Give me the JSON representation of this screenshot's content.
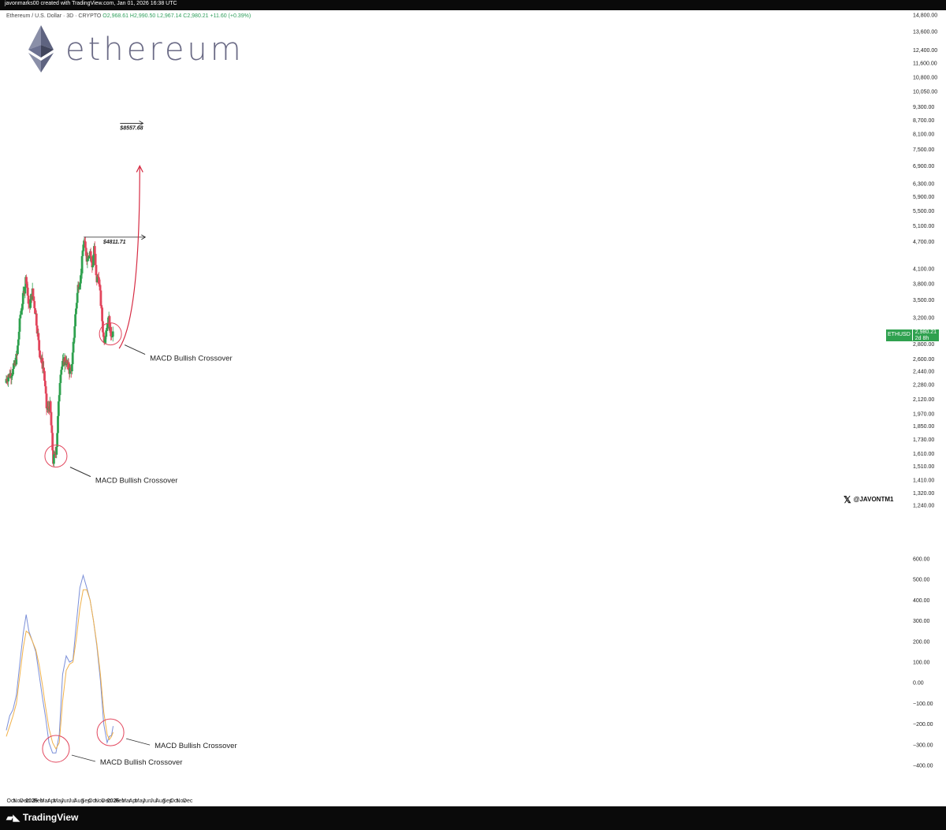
{
  "header": {
    "credit": "javonmarks00 created with TradingView.com, Jan 01, 2026 16:38 UTC",
    "symbol_line": "Ethereum / U.S. Dollar · 3D · CRYPTO",
    "ohlc": "O2,968.61  H2,990.50  L2,967.14  C2,980.21  +11.60 (+0.39%)"
  },
  "logo": {
    "word": "ethereum",
    "icon": "ethereum-diamond-icon"
  },
  "watermark": {
    "icon": "x-logo-icon",
    "handle": "@JAVONTM1"
  },
  "footer": {
    "brand": "TradingView",
    "icon": "tradingview-logo-icon"
  },
  "price_tag": {
    "symbol": "ETHUSD",
    "value": "2,980.21",
    "sub": "2d 8h"
  },
  "colors": {
    "up": "#2fa14f",
    "down": "#e2455c",
    "macd": "#7b8fd8",
    "signal": "#f0b14a",
    "arrow": "#d62b43",
    "circle": "#e2455c"
  },
  "chart_data": [
    {
      "type": "candlestick",
      "title": "Ethereum / U.S. Dollar · 3D",
      "y_axis": {
        "scale": "log",
        "ticks": [
          "14,800.00",
          "13,600.00",
          "12,400.00",
          "11,600.00",
          "10,800.00",
          "10,050.00",
          "9,300.00",
          "8,700.00",
          "8,100.00",
          "7,500.00",
          "6,900.00",
          "6,300.00",
          "5,900.00",
          "5,500.00",
          "5,100.00",
          "4,700.00",
          "4,100.00",
          "3,800.00",
          "3,500.00",
          "3,200.00",
          "2,800.00",
          "2,600.00",
          "2,440.00",
          "2,280.00",
          "2,120.00",
          "1,970.00",
          "1,850.00",
          "1,730.00",
          "1,610.00",
          "1,510.00",
          "1,410.00",
          "1,320.00",
          "1,240.00"
        ]
      },
      "close_anchors": [
        {
          "x": "2024-09-10",
          "close": 2350
        },
        {
          "x": "2024-10-10",
          "close": 2450
        },
        {
          "x": "2024-10-28",
          "close": 2650
        },
        {
          "x": "2024-11-12",
          "close": 3250
        },
        {
          "x": "2024-11-28",
          "close": 3650
        },
        {
          "x": "2024-12-08",
          "close": 3950
        },
        {
          "x": "2024-12-20",
          "close": 3350
        },
        {
          "x": "2025-01-05",
          "close": 3650
        },
        {
          "x": "2025-01-20",
          "close": 3250
        },
        {
          "x": "2025-02-05",
          "close": 2700
        },
        {
          "x": "2025-02-25",
          "close": 2450
        },
        {
          "x": "2025-03-10",
          "close": 2000
        },
        {
          "x": "2025-03-25",
          "close": 2050
        },
        {
          "x": "2025-04-08",
          "close": 1550
        },
        {
          "x": "2025-04-22",
          "close": 1650
        },
        {
          "x": "2025-05-10",
          "close": 2450
        },
        {
          "x": "2025-05-30",
          "close": 2600
        },
        {
          "x": "2025-06-20",
          "close": 2450
        },
        {
          "x": "2025-07-01",
          "close": 2500
        },
        {
          "x": "2025-07-15",
          "close": 3200
        },
        {
          "x": "2025-07-28",
          "close": 3750
        },
        {
          "x": "2025-08-10",
          "close": 3950
        },
        {
          "x": "2025-08-22",
          "close": 4750
        },
        {
          "x": "2025-09-05",
          "close": 4350
        },
        {
          "x": "2025-09-20",
          "close": 4500
        },
        {
          "x": "2025-09-30",
          "close": 4100
        },
        {
          "x": "2025-10-08",
          "close": 4600
        },
        {
          "x": "2025-10-18",
          "close": 3850
        },
        {
          "x": "2025-10-28",
          "close": 3950
        },
        {
          "x": "2025-11-08",
          "close": 3400
        },
        {
          "x": "2025-11-20",
          "close": 2850
        },
        {
          "x": "2025-12-05",
          "close": 3100
        },
        {
          "x": "2025-12-12",
          "close": 3200
        },
        {
          "x": "2025-12-20",
          "close": 2950
        },
        {
          "x": "2026-01-01",
          "close": 2980.21
        }
      ],
      "last_candle": {
        "open": 2968.61,
        "high": 2990.5,
        "low": 2967.14,
        "close": 2980.21
      },
      "annotations": [
        {
          "text": "$4811.71",
          "y": 4811.71,
          "x_from": "2025-08-22",
          "x_to": "2026-05-25"
        },
        {
          "text": "$8557.68",
          "y": 8557.68,
          "x_from": "2026-02-01",
          "x_to": "2026-05-15"
        },
        {
          "text": "MACD Bullish Crossover",
          "x": "2025-04-20",
          "y": 1590
        },
        {
          "text": "MACD Bullish Crossover",
          "x": "2025-12-20",
          "y": 2950
        }
      ],
      "projection": {
        "from": {
          "x": "2026-01-28",
          "y": 2740
        },
        "to": {
          "x": "2026-04-30",
          "y": 6900
        }
      }
    },
    {
      "type": "line",
      "title": "MACD",
      "ylim": [
        -450,
        650
      ],
      "y_ticks": [
        600,
        500,
        400,
        300,
        200,
        100,
        0,
        -100,
        -200,
        -300,
        -400
      ],
      "y_tick_labels": [
        "600.00",
        "500.00",
        "400.00",
        "300.00",
        "200.00",
        "100.00",
        "0.00",
        "−100.00",
        "−200.00",
        "−300.00",
        "−400.00"
      ],
      "series": [
        {
          "role": "macd",
          "points": [
            {
              "x": "2024-09-10",
              "y": -230
            },
            {
              "x": "2024-09-25",
              "y": -160
            },
            {
              "x": "2024-10-10",
              "y": -130
            },
            {
              "x": "2024-10-25",
              "y": -60
            },
            {
              "x": "2024-11-10",
              "y": 100
            },
            {
              "x": "2024-11-25",
              "y": 240
            },
            {
              "x": "2024-12-08",
              "y": 330
            },
            {
              "x": "2024-12-20",
              "y": 250
            },
            {
              "x": "2025-01-05",
              "y": 200
            },
            {
              "x": "2025-01-20",
              "y": 150
            },
            {
              "x": "2025-02-05",
              "y": 30
            },
            {
              "x": "2025-02-20",
              "y": -80
            },
            {
              "x": "2025-03-05",
              "y": -170
            },
            {
              "x": "2025-03-20",
              "y": -290
            },
            {
              "x": "2025-04-05",
              "y": -340
            },
            {
              "x": "2025-04-20",
              "y": -340
            },
            {
              "x": "2025-05-05",
              "y": -250
            },
            {
              "x": "2025-05-20",
              "y": 40
            },
            {
              "x": "2025-06-05",
              "y": 130
            },
            {
              "x": "2025-06-20",
              "y": 100
            },
            {
              "x": "2025-07-05",
              "y": 110
            },
            {
              "x": "2025-07-20",
              "y": 280
            },
            {
              "x": "2025-08-05",
              "y": 460
            },
            {
              "x": "2025-08-20",
              "y": 520
            },
            {
              "x": "2025-09-05",
              "y": 460
            },
            {
              "x": "2025-09-20",
              "y": 400
            },
            {
              "x": "2025-10-05",
              "y": 300
            },
            {
              "x": "2025-10-20",
              "y": 180
            },
            {
              "x": "2025-11-05",
              "y": 10
            },
            {
              "x": "2025-11-20",
              "y": -200
            },
            {
              "x": "2025-12-05",
              "y": -290
            },
            {
              "x": "2025-12-15",
              "y": -260
            },
            {
              "x": "2025-12-25",
              "y": -255
            },
            {
              "x": "2026-01-01",
              "y": -210
            }
          ]
        },
        {
          "role": "signal",
          "points": [
            {
              "x": "2024-09-10",
              "y": -260
            },
            {
              "x": "2024-09-25",
              "y": -210
            },
            {
              "x": "2024-10-10",
              "y": -160
            },
            {
              "x": "2024-10-25",
              "y": -100
            },
            {
              "x": "2024-11-10",
              "y": 40
            },
            {
              "x": "2024-11-25",
              "y": 170
            },
            {
              "x": "2024-12-08",
              "y": 250
            },
            {
              "x": "2024-12-20",
              "y": 240
            },
            {
              "x": "2025-01-05",
              "y": 200
            },
            {
              "x": "2025-01-20",
              "y": 160
            },
            {
              "x": "2025-02-05",
              "y": 80
            },
            {
              "x": "2025-02-20",
              "y": -20
            },
            {
              "x": "2025-03-05",
              "y": -120
            },
            {
              "x": "2025-03-20",
              "y": -220
            },
            {
              "x": "2025-04-05",
              "y": -290
            },
            {
              "x": "2025-04-20",
              "y": -320
            },
            {
              "x": "2025-05-05",
              "y": -290
            },
            {
              "x": "2025-05-20",
              "y": -90
            },
            {
              "x": "2025-06-05",
              "y": 60
            },
            {
              "x": "2025-06-20",
              "y": 90
            },
            {
              "x": "2025-07-05",
              "y": 100
            },
            {
              "x": "2025-07-20",
              "y": 210
            },
            {
              "x": "2025-08-05",
              "y": 360
            },
            {
              "x": "2025-08-20",
              "y": 450
            },
            {
              "x": "2025-09-05",
              "y": 450
            },
            {
              "x": "2025-09-20",
              "y": 400
            },
            {
              "x": "2025-10-05",
              "y": 300
            },
            {
              "x": "2025-10-20",
              "y": 190
            },
            {
              "x": "2025-11-05",
              "y": 40
            },
            {
              "x": "2025-11-20",
              "y": -140
            },
            {
              "x": "2025-12-05",
              "y": -250
            },
            {
              "x": "2025-12-15",
              "y": -275
            },
            {
              "x": "2025-12-25",
              "y": -260
            },
            {
              "x": "2026-01-01",
              "y": -240
            }
          ]
        }
      ],
      "annotations": [
        {
          "text": "MACD Bullish Crossover",
          "x": "2025-04-20",
          "y": -320
        },
        {
          "text": "MACD Bullish Crossover",
          "x": "2025-12-20",
          "y": -240
        }
      ]
    }
  ],
  "x_axis": {
    "ticks": [
      {
        "label": "Oct",
        "date": "2024-10-01",
        "bold": false
      },
      {
        "label": "Nov",
        "date": "2024-11-01",
        "bold": false
      },
      {
        "label": "Dec",
        "date": "2024-12-01",
        "bold": false
      },
      {
        "label": "2025",
        "date": "2025-01-01",
        "bold": true
      },
      {
        "label": "Feb",
        "date": "2025-02-01",
        "bold": false
      },
      {
        "label": "Mar",
        "date": "2025-03-01",
        "bold": false
      },
      {
        "label": "Apr",
        "date": "2025-04-01",
        "bold": false
      },
      {
        "label": "May",
        "date": "2025-05-01",
        "bold": false
      },
      {
        "label": "Jun",
        "date": "2025-06-01",
        "bold": false
      },
      {
        "label": "Jul",
        "date": "2025-07-01",
        "bold": false
      },
      {
        "label": "Aug",
        "date": "2025-08-01",
        "bold": false
      },
      {
        "label": "Sep",
        "date": "2025-09-01",
        "bold": false
      },
      {
        "label": "Oct",
        "date": "2025-10-01",
        "bold": false
      },
      {
        "label": "Nov",
        "date": "2025-11-01",
        "bold": false
      },
      {
        "label": "Dec",
        "date": "2025-12-01",
        "bold": false
      },
      {
        "label": "2026",
        "date": "2026-01-01",
        "bold": true
      },
      {
        "label": "Feb",
        "date": "2026-02-01",
        "bold": false
      },
      {
        "label": "Mar",
        "date": "2026-03-01",
        "bold": false
      },
      {
        "label": "Apr",
        "date": "2026-04-01",
        "bold": false
      },
      {
        "label": "May",
        "date": "2026-05-01",
        "bold": false
      },
      {
        "label": "Jun",
        "date": "2026-06-01",
        "bold": false
      },
      {
        "label": "Jul",
        "date": "2026-07-01",
        "bold": false
      },
      {
        "label": "Aug",
        "date": "2026-08-01",
        "bold": false
      },
      {
        "label": "Sep",
        "date": "2026-09-01",
        "bold": false
      },
      {
        "label": "Oct",
        "date": "2026-10-01",
        "bold": false
      },
      {
        "label": "Nov",
        "date": "2026-11-01",
        "bold": false
      },
      {
        "label": "Dec",
        "date": "2026-12-01",
        "bold": false
      }
    ]
  }
}
